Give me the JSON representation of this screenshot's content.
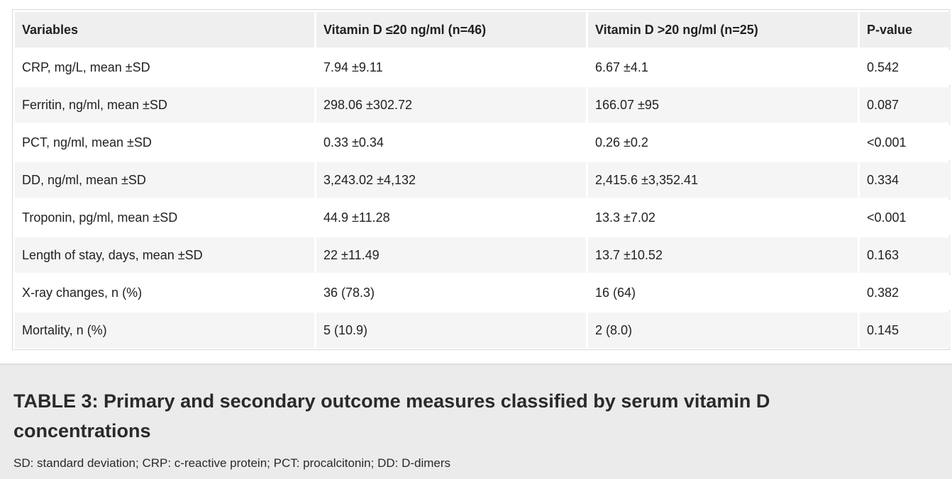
{
  "table": {
    "headers": [
      "Variables",
      "Vitamin D ≤20 ng/ml (n=46)",
      "Vitamin D >20 ng/ml (n=25)",
      "P-value"
    ],
    "rows": [
      [
        "CRP, mg/L, mean ±SD",
        "7.94 ±9.11",
        "6.67 ±4.1",
        "0.542"
      ],
      [
        "Ferritin, ng/ml, mean ±SD",
        "298.06 ±302.72",
        "166.07 ±95",
        "0.087"
      ],
      [
        "PCT, ng/ml, mean ±SD",
        "0.33 ±0.34",
        "0.26 ±0.2",
        "<0.001"
      ],
      [
        "DD, ng/ml, mean ±SD",
        "3,243.02 ±4,132",
        "2,415.6 ±3,352.41",
        "0.334"
      ],
      [
        "Troponin, pg/ml, mean ±SD",
        "44.9 ±11.28",
        "13.3 ±7.02",
        "<0.001"
      ],
      [
        "Length of stay, days, mean ±SD",
        "22 ±11.49",
        "13.7 ±10.52",
        "0.163"
      ],
      [
        "X-ray changes, n (%)",
        "36 (78.3)",
        "16 (64)",
        "0.382"
      ],
      [
        "Mortality, n (%)",
        "5 (10.9)",
        "2 (8.0)",
        "0.145"
      ]
    ]
  },
  "caption": {
    "title": "TABLE 3: Primary and secondary outcome measures classified by serum vitamin D concentrations",
    "note": "SD: standard deviation; CRP: c-reactive protein; PCT: procalcitonin; DD: D-dimers"
  }
}
